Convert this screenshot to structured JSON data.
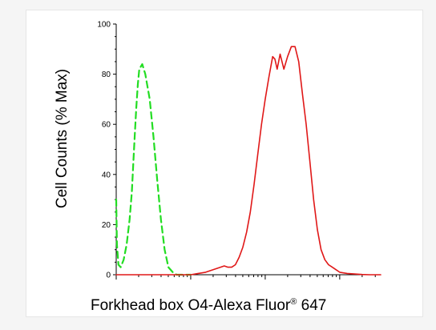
{
  "chart_data": {
    "type": "line",
    "xlabel": "Forkhead box O4-Alexa Fluor",
    "xlabel_superscript": "®",
    "xlabel_suffix": " 647",
    "ylabel": "Cell Counts (% Max)",
    "ylim": [
      0,
      100
    ],
    "y_ticks": [
      "0",
      "20",
      "40",
      "60",
      "80",
      "100"
    ],
    "x_scale": "log",
    "x_tick_labels_visible": false,
    "grid": false,
    "legend": "none",
    "series": [
      {
        "style": "dashed",
        "color": "#22dd22",
        "x": [
          0.0,
          0.01,
          0.03,
          0.06,
          0.1,
          0.14,
          0.18,
          0.21,
          0.23,
          0.25,
          0.27,
          0.29,
          0.31,
          0.35,
          0.39,
          0.45,
          0.5,
          0.55,
          0.6,
          0.65,
          0.7,
          0.76,
          0.81,
          0.86,
          0.9,
          0.95,
          1.0
        ],
        "y": [
          30,
          12,
          4,
          3,
          6,
          12,
          22,
          33,
          45,
          56,
          67,
          76,
          82,
          84,
          80,
          70,
          55,
          38,
          22,
          10,
          3,
          1,
          0,
          0,
          0,
          0,
          0
        ]
      },
      {
        "style": "solid",
        "color": "#e01818",
        "x": [
          0.0,
          0.5,
          0.8,
          1.0,
          1.1,
          1.2,
          1.3,
          1.4,
          1.45,
          1.5,
          1.55,
          1.6,
          1.65,
          1.7,
          1.75,
          1.8,
          1.85,
          1.9,
          1.95,
          2.0,
          2.05,
          2.1,
          2.13,
          2.16,
          2.2,
          2.25,
          2.3,
          2.35,
          2.4,
          2.45,
          2.5,
          2.55,
          2.6,
          2.65,
          2.7,
          2.75,
          2.8,
          2.85,
          2.9,
          2.95,
          3.0,
          3.1,
          3.2,
          3.3,
          3.4,
          3.55
        ],
        "y": [
          0,
          0,
          0,
          0,
          0.5,
          1,
          2,
          3,
          3.5,
          3,
          3,
          4,
          7,
          11,
          17,
          25,
          36,
          48,
          60,
          70,
          79,
          87,
          86,
          82,
          88,
          82,
          87,
          91,
          91,
          85,
          72,
          60,
          45,
          30,
          18,
          10,
          6,
          4,
          3,
          2,
          1,
          0.5,
          0.3,
          0.1,
          0,
          0
        ]
      }
    ]
  }
}
